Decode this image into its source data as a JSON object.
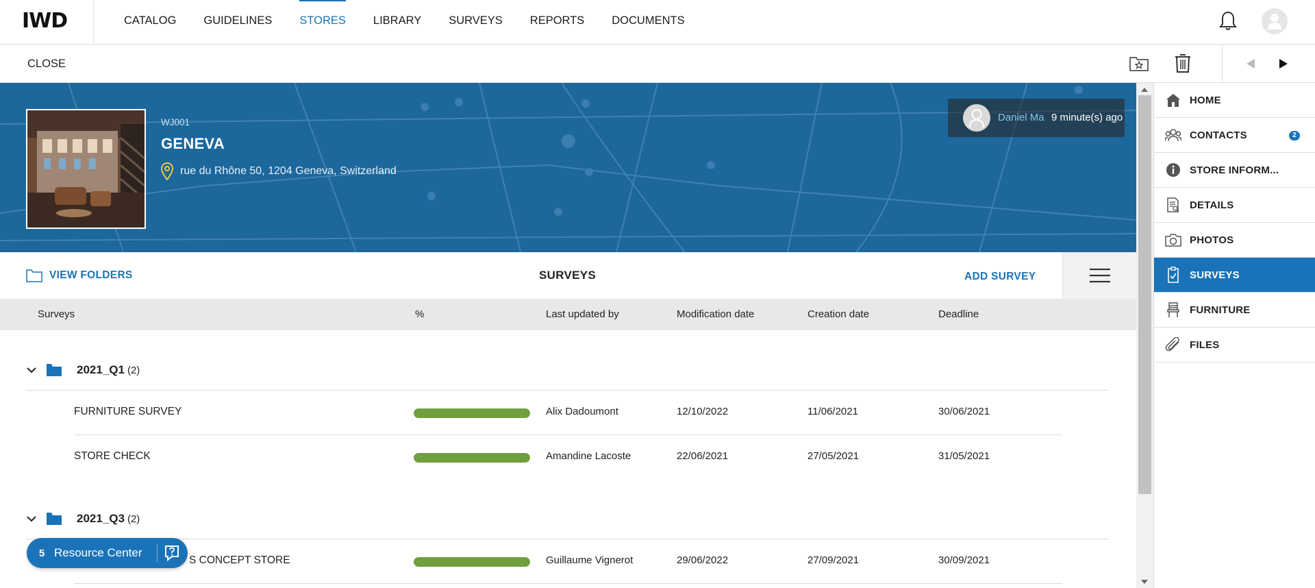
{
  "app": {
    "logo": "IWD",
    "nav": [
      "CATALOG",
      "GUIDELINES",
      "STORES",
      "LIBRARY",
      "SURVEYS",
      "REPORTS",
      "DOCUMENTS"
    ],
    "active_nav": "STORES"
  },
  "subbar": {
    "close_label": "CLOSE"
  },
  "store": {
    "code": "WJ001",
    "name": "GENEVA",
    "address": "rue du Rhône 50, 1204 Geneva, Switzerland",
    "last_update": {
      "user": "Daniel Ma",
      "time": "9 minute(s) ago"
    }
  },
  "toolbar": {
    "view_folders_label": "VIEW FOLDERS",
    "title": "SURVEYS",
    "add_label": "ADD SURVEY"
  },
  "table": {
    "headers": [
      "Surveys",
      "%",
      "Last updated by",
      "Modification date",
      "Creation date",
      "Deadline"
    ],
    "groups": [
      {
        "name": "2021_Q1",
        "count": "(2)",
        "rows": [
          {
            "name": "FURNITURE SURVEY",
            "progress": 1.0,
            "updated_by": "Alix Dadoumont",
            "modified": "12/10/2022",
            "created": "11/06/2021",
            "deadline": "30/06/2021"
          },
          {
            "name": "STORE CHECK",
            "progress": 1.0,
            "updated_by": "Amandine Lacoste",
            "modified": "22/06/2021",
            "created": "27/05/2021",
            "deadline": "31/05/2021"
          }
        ]
      },
      {
        "name": "2021_Q3",
        "count": "(2)",
        "rows": [
          {
            "name": "S CONCEPT STORE",
            "progress": 1.0,
            "updated_by": "Guillaume Vignerot",
            "modified": "29/06/2022",
            "created": "27/09/2021",
            "deadline": "30/09/2021"
          }
        ]
      }
    ]
  },
  "sidebar": {
    "items": [
      {
        "label": "HOME",
        "icon": "home-icon"
      },
      {
        "label": "CONTACTS",
        "icon": "contacts-icon",
        "badge": "2"
      },
      {
        "label": "STORE INFORM...",
        "icon": "info-icon"
      },
      {
        "label": "DETAILS",
        "icon": "details-icon"
      },
      {
        "label": "PHOTOS",
        "icon": "camera-icon"
      },
      {
        "label": "SURVEYS",
        "icon": "clipboard-icon"
      },
      {
        "label": "FURNITURE",
        "icon": "furniture-icon"
      },
      {
        "label": "FILES",
        "icon": "paperclip-icon"
      }
    ],
    "active": "SURVEYS"
  },
  "resource_center": {
    "count": "5",
    "label": "Resource Center"
  },
  "colors": {
    "accent": "#1a73b8",
    "banner": "#1c679c",
    "progress": "#6f9f3f"
  }
}
